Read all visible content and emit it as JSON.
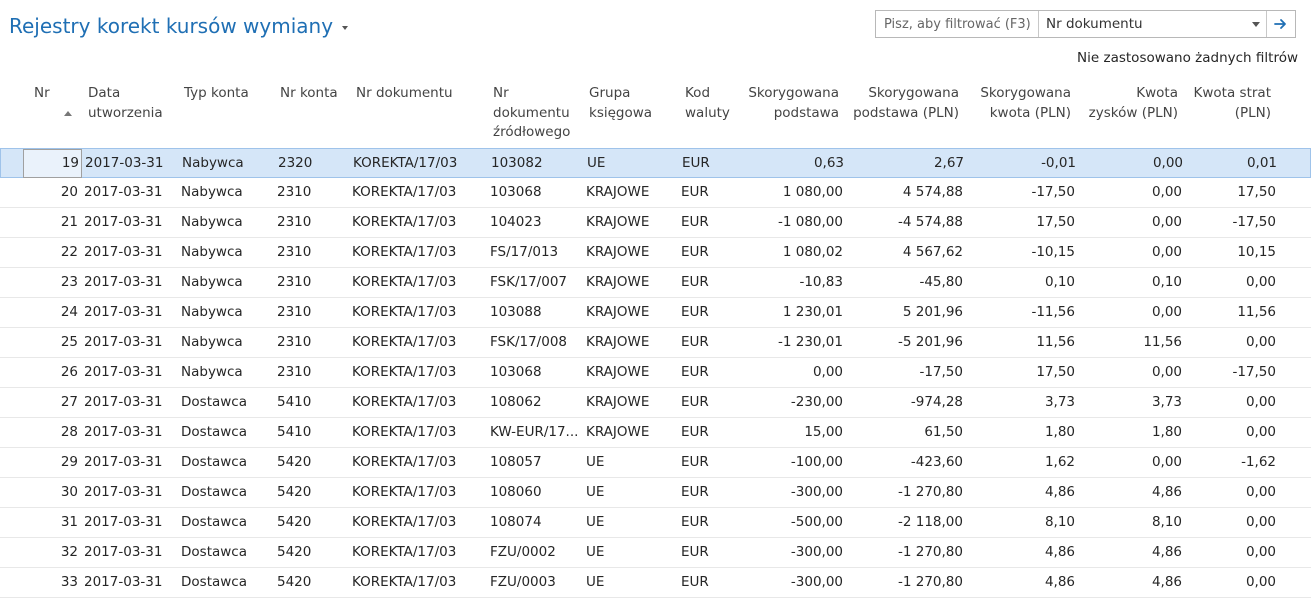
{
  "page": {
    "title": "Rejestry korekt kursów wymiany",
    "filter_placeholder": "Pisz, aby filtrować (F3)",
    "filter_field": "Nr dokumentu",
    "filter_status": "Nie zastosowano żadnych filtrów"
  },
  "columns": {
    "nr": "Nr",
    "data_line1": "Data",
    "data_line2": "utworzenia",
    "typ": "Typ konta",
    "nrkonta": "Nr konta",
    "nrdok": "Nr dokumentu",
    "nrdokzr_line1": "Nr",
    "nrdokzr_line2": "dokumentu",
    "nrdokzr_line3": "źródłowego",
    "grupa_line1": "Grupa",
    "grupa_line2": "księgowa",
    "kod_line1": "Kod",
    "kod_line2": "waluty",
    "skp_line1": "Skorygowana",
    "skp_line2": "podstawa",
    "skppln_line1": "Skorygowana",
    "skppln_line2": "podstawa (PLN)",
    "skk_line1": "Skorygowana",
    "skk_line2": "kwota (PLN)",
    "zysk_line1": "Kwota",
    "zysk_line2": "zysków (PLN)",
    "strat_line1": "Kwota strat",
    "strat_line2": "(PLN)"
  },
  "rows": [
    {
      "nr": "19",
      "data": "2017-03-31",
      "typ": "Nabywca",
      "nrkonta": "2320",
      "nrdok": "KOREKTA/17/03",
      "nrdokzr": "103082",
      "grupa": "UE",
      "kod": "EUR",
      "skp": "0,63",
      "skppln": "2,67",
      "skk": "-0,01",
      "zysk": "0,00",
      "strat": "0,01"
    },
    {
      "nr": "20",
      "data": "2017-03-31",
      "typ": "Nabywca",
      "nrkonta": "2310",
      "nrdok": "KOREKTA/17/03",
      "nrdokzr": "103068",
      "grupa": "KRAJOWE",
      "kod": "EUR",
      "skp": "1 080,00",
      "skppln": "4 574,88",
      "skk": "-17,50",
      "zysk": "0,00",
      "strat": "17,50"
    },
    {
      "nr": "21",
      "data": "2017-03-31",
      "typ": "Nabywca",
      "nrkonta": "2310",
      "nrdok": "KOREKTA/17/03",
      "nrdokzr": "104023",
      "grupa": "KRAJOWE",
      "kod": "EUR",
      "skp": "-1 080,00",
      "skppln": "-4 574,88",
      "skk": "17,50",
      "zysk": "0,00",
      "strat": "-17,50"
    },
    {
      "nr": "22",
      "data": "2017-03-31",
      "typ": "Nabywca",
      "nrkonta": "2310",
      "nrdok": "KOREKTA/17/03",
      "nrdokzr": "FS/17/013",
      "grupa": "KRAJOWE",
      "kod": "EUR",
      "skp": "1 080,02",
      "skppln": "4 567,62",
      "skk": "-10,15",
      "zysk": "0,00",
      "strat": "10,15"
    },
    {
      "nr": "23",
      "data": "2017-03-31",
      "typ": "Nabywca",
      "nrkonta": "2310",
      "nrdok": "KOREKTA/17/03",
      "nrdokzr": "FSK/17/007",
      "grupa": "KRAJOWE",
      "kod": "EUR",
      "skp": "-10,83",
      "skppln": "-45,80",
      "skk": "0,10",
      "zysk": "0,10",
      "strat": "0,00"
    },
    {
      "nr": "24",
      "data": "2017-03-31",
      "typ": "Nabywca",
      "nrkonta": "2310",
      "nrdok": "KOREKTA/17/03",
      "nrdokzr": "103088",
      "grupa": "KRAJOWE",
      "kod": "EUR",
      "skp": "1 230,01",
      "skppln": "5 201,96",
      "skk": "-11,56",
      "zysk": "0,00",
      "strat": "11,56"
    },
    {
      "nr": "25",
      "data": "2017-03-31",
      "typ": "Nabywca",
      "nrkonta": "2310",
      "nrdok": "KOREKTA/17/03",
      "nrdokzr": "FSK/17/008",
      "grupa": "KRAJOWE",
      "kod": "EUR",
      "skp": "-1 230,01",
      "skppln": "-5 201,96",
      "skk": "11,56",
      "zysk": "11,56",
      "strat": "0,00"
    },
    {
      "nr": "26",
      "data": "2017-03-31",
      "typ": "Nabywca",
      "nrkonta": "2310",
      "nrdok": "KOREKTA/17/03",
      "nrdokzr": "103068",
      "grupa": "KRAJOWE",
      "kod": "EUR",
      "skp": "0,00",
      "skppln": "-17,50",
      "skk": "17,50",
      "zysk": "0,00",
      "strat": "-17,50"
    },
    {
      "nr": "27",
      "data": "2017-03-31",
      "typ": "Dostawca",
      "nrkonta": "5410",
      "nrdok": "KOREKTA/17/03",
      "nrdokzr": "108062",
      "grupa": "KRAJOWE",
      "kod": "EUR",
      "skp": "-230,00",
      "skppln": "-974,28",
      "skk": "3,73",
      "zysk": "3,73",
      "strat": "0,00"
    },
    {
      "nr": "28",
      "data": "2017-03-31",
      "typ": "Dostawca",
      "nrkonta": "5410",
      "nrdok": "KOREKTA/17/03",
      "nrdokzr": "KW-EUR/17...",
      "grupa": "KRAJOWE",
      "kod": "EUR",
      "skp": "15,00",
      "skppln": "61,50",
      "skk": "1,80",
      "zysk": "1,80",
      "strat": "0,00"
    },
    {
      "nr": "29",
      "data": "2017-03-31",
      "typ": "Dostawca",
      "nrkonta": "5420",
      "nrdok": "KOREKTA/17/03",
      "nrdokzr": "108057",
      "grupa": "UE",
      "kod": "EUR",
      "skp": "-100,00",
      "skppln": "-423,60",
      "skk": "1,62",
      "zysk": "0,00",
      "strat": "-1,62"
    },
    {
      "nr": "30",
      "data": "2017-03-31",
      "typ": "Dostawca",
      "nrkonta": "5420",
      "nrdok": "KOREKTA/17/03",
      "nrdokzr": "108060",
      "grupa": "UE",
      "kod": "EUR",
      "skp": "-300,00",
      "skppln": "-1 270,80",
      "skk": "4,86",
      "zysk": "4,86",
      "strat": "0,00"
    },
    {
      "nr": "31",
      "data": "2017-03-31",
      "typ": "Dostawca",
      "nrkonta": "5420",
      "nrdok": "KOREKTA/17/03",
      "nrdokzr": "108074",
      "grupa": "UE",
      "kod": "EUR",
      "skp": "-500,00",
      "skppln": "-2 118,00",
      "skk": "8,10",
      "zysk": "8,10",
      "strat": "0,00"
    },
    {
      "nr": "32",
      "data": "2017-03-31",
      "typ": "Dostawca",
      "nrkonta": "5420",
      "nrdok": "KOREKTA/17/03",
      "nrdokzr": "FZU/0002",
      "grupa": "UE",
      "kod": "EUR",
      "skp": "-300,00",
      "skppln": "-1 270,80",
      "skk": "4,86",
      "zysk": "4,86",
      "strat": "0,00"
    },
    {
      "nr": "33",
      "data": "2017-03-31",
      "typ": "Dostawca",
      "nrkonta": "5420",
      "nrdok": "KOREKTA/17/03",
      "nrdokzr": "FZU/0003",
      "grupa": "UE",
      "kod": "EUR",
      "skp": "-300,00",
      "skppln": "-1 270,80",
      "skk": "4,86",
      "zysk": "4,86",
      "strat": "0,00"
    }
  ],
  "colors": {
    "title": "#1f6fb4",
    "selected_row": "#d5e6f8"
  },
  "icons": {
    "title_menu": "chevron-down-icon",
    "filter_field": "chevron-down-icon",
    "filter_apply": "arrow-right-icon",
    "sort": "sort-ascending-icon"
  }
}
